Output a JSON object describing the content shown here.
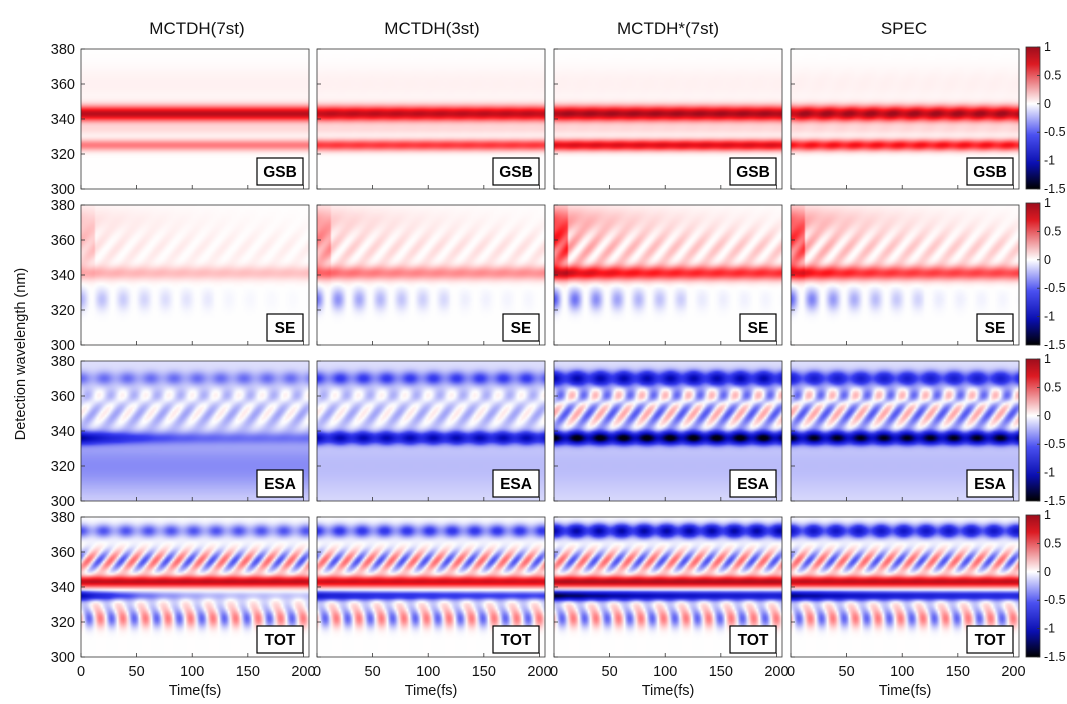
{
  "chart_data": {
    "type": "heatmap",
    "column_titles": [
      "MCTDH(7st)",
      "MCTDH(3st)",
      "MCTDH*(7st)",
      "SPEC"
    ],
    "row_labels": [
      "GSB",
      "SE",
      "ESA",
      "TOT"
    ],
    "xlabel": "Time(fs)",
    "ylabel": "Detection wavelength (nm)",
    "xlim": [
      0,
      205
    ],
    "ylim": [
      300,
      380
    ],
    "xticks": [
      "0",
      "50",
      "100",
      "150",
      "200"
    ],
    "yticks": [
      "300",
      "320",
      "340",
      "360",
      "380"
    ],
    "colorbar": {
      "range": [
        -1.5,
        1
      ],
      "ticks": [
        "1",
        "0.5",
        "0",
        "-0.5",
        "-1",
        "-1.5"
      ],
      "colors": {
        "max": "#9e0d1c",
        "positive": "#e3121c",
        "zero": "#ffffff",
        "negative": "#0b12d8",
        "min": "#000000"
      }
    },
    "panels": {
      "GSB": {
        "bands_nm": [
          343,
          325
        ],
        "amplitude": [
          [
            0.92,
            0.4
          ],
          [
            0.9,
            0.6
          ],
          [
            0.97,
            0.8
          ],
          [
            0.95,
            0.7
          ]
        ],
        "oscillation": [
          0.0,
          0.02,
          0.03,
          0.08
        ]
      },
      "SE": {
        "peak_nm": 341,
        "amplitude": [
          0.25,
          0.45,
          0.85,
          0.75
        ],
        "negative_early": [
          0.2,
          0.35,
          0.45,
          0.4
        ]
      },
      "ESA": {
        "deep_band_nm": 336,
        "deep_amplitude": [
          -0.8,
          -0.95,
          -1.5,
          -1.4
        ],
        "upper_band_nm": 370,
        "upper_amplitude": [
          -0.3,
          -0.45,
          -1.0,
          -0.75
        ]
      },
      "TOT": {
        "positive_band_nm": 343,
        "positive_amplitude": [
          0.9,
          0.85,
          0.95,
          0.9
        ],
        "negative_band_nm": 335,
        "negative_amplitude": [
          -0.9,
          -0.85,
          -1.4,
          -1.2
        ],
        "upper_band_nm": 372,
        "upper_amplitude": [
          -0.45,
          -0.55,
          -1.1,
          -0.9
        ]
      }
    }
  }
}
